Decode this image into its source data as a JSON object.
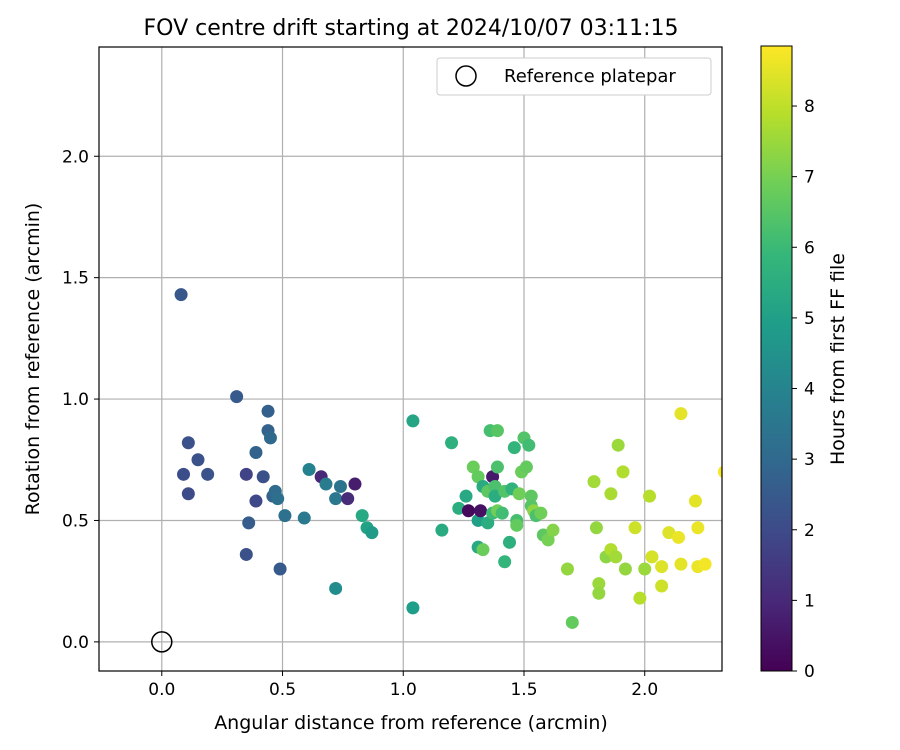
{
  "chart_data": {
    "type": "scatter",
    "title": "FOV centre drift starting at 2024/10/07 03:11:15",
    "xlabel": "Angular distance from reference (arcmin)",
    "ylabel": "Rotation from reference (arcmin)",
    "xlim": [
      -0.26,
      2.32
    ],
    "ylim": [
      -0.12,
      2.45
    ],
    "xticks": [
      0.0,
      0.5,
      1.0,
      1.5,
      2.0
    ],
    "xtick_labels": [
      "0.0",
      "0.5",
      "1.0",
      "1.5",
      "2.0"
    ],
    "yticks": [
      0.0,
      0.5,
      1.0,
      1.5,
      2.0
    ],
    "ytick_labels": [
      "0.0",
      "0.5",
      "1.0",
      "1.5",
      "2.0"
    ],
    "grid": true,
    "legend": {
      "position": "top-right",
      "entries": [
        {
          "label": "Reference platepar",
          "marker": "open-circle",
          "x": 0.0,
          "y": 0.0
        }
      ]
    },
    "colorbar": {
      "label": "Hours from first FF file",
      "range": [
        0,
        8.85
      ],
      "ticks": [
        0,
        1,
        2,
        3,
        4,
        5,
        6,
        7,
        8
      ],
      "tick_labels": [
        "0",
        "1",
        "2",
        "3",
        "4",
        "5",
        "6",
        "7",
        "8"
      ],
      "colormap": "viridis"
    },
    "points": [
      {
        "x": 0.08,
        "y": 1.43,
        "h": 2.4
      },
      {
        "x": 0.09,
        "y": 0.69,
        "h": 2.1
      },
      {
        "x": 0.11,
        "y": 0.82,
        "h": 2.2
      },
      {
        "x": 0.11,
        "y": 0.61,
        "h": 2.0
      },
      {
        "x": 0.15,
        "y": 0.75,
        "h": 2.2
      },
      {
        "x": 0.19,
        "y": 0.69,
        "h": 2.3
      },
      {
        "x": 0.31,
        "y": 1.01,
        "h": 2.5
      },
      {
        "x": 0.35,
        "y": 0.69,
        "h": 1.8
      },
      {
        "x": 0.35,
        "y": 0.36,
        "h": 2.2
      },
      {
        "x": 0.36,
        "y": 0.49,
        "h": 2.6
      },
      {
        "x": 0.39,
        "y": 0.58,
        "h": 1.9
      },
      {
        "x": 0.39,
        "y": 0.78,
        "h": 2.8
      },
      {
        "x": 0.42,
        "y": 0.68,
        "h": 2.2
      },
      {
        "x": 0.44,
        "y": 0.95,
        "h": 2.7
      },
      {
        "x": 0.44,
        "y": 0.87,
        "h": 2.8
      },
      {
        "x": 0.45,
        "y": 0.84,
        "h": 3.0
      },
      {
        "x": 0.46,
        "y": 0.6,
        "h": 2.8
      },
      {
        "x": 0.47,
        "y": 0.62,
        "h": 3.1
      },
      {
        "x": 0.48,
        "y": 0.59,
        "h": 3.2
      },
      {
        "x": 0.49,
        "y": 0.3,
        "h": 2.5
      },
      {
        "x": 0.51,
        "y": 0.52,
        "h": 3.3
      },
      {
        "x": 0.59,
        "y": 0.51,
        "h": 3.6
      },
      {
        "x": 0.61,
        "y": 0.71,
        "h": 3.9
      },
      {
        "x": 0.66,
        "y": 0.68,
        "h": 1.0
      },
      {
        "x": 0.68,
        "y": 0.65,
        "h": 3.7
      },
      {
        "x": 0.72,
        "y": 0.59,
        "h": 3.5
      },
      {
        "x": 0.72,
        "y": 0.22,
        "h": 4.3
      },
      {
        "x": 0.74,
        "y": 0.64,
        "h": 3.4
      },
      {
        "x": 0.77,
        "y": 0.59,
        "h": 1.1
      },
      {
        "x": 0.8,
        "y": 0.65,
        "h": 0.7
      },
      {
        "x": 0.83,
        "y": 0.52,
        "h": 5.3
      },
      {
        "x": 0.85,
        "y": 0.47,
        "h": 5.1
      },
      {
        "x": 0.87,
        "y": 0.45,
        "h": 4.8
      },
      {
        "x": 1.04,
        "y": 0.14,
        "h": 4.9
      },
      {
        "x": 1.04,
        "y": 0.91,
        "h": 5.2
      },
      {
        "x": 1.16,
        "y": 0.46,
        "h": 5.4
      },
      {
        "x": 1.2,
        "y": 0.82,
        "h": 5.6
      },
      {
        "x": 1.23,
        "y": 0.55,
        "h": 5.5
      },
      {
        "x": 1.26,
        "y": 0.6,
        "h": 5.3
      },
      {
        "x": 1.27,
        "y": 0.54,
        "h": 0.2
      },
      {
        "x": 1.29,
        "y": 0.72,
        "h": 6.8
      },
      {
        "x": 1.31,
        "y": 0.39,
        "h": 5.3
      },
      {
        "x": 1.31,
        "y": 0.5,
        "h": 5.0
      },
      {
        "x": 1.31,
        "y": 0.68,
        "h": 6.7
      },
      {
        "x": 1.32,
        "y": 0.54,
        "h": 0.4
      },
      {
        "x": 1.33,
        "y": 0.64,
        "h": 5.4
      },
      {
        "x": 1.33,
        "y": 0.38,
        "h": 6.8
      },
      {
        "x": 1.35,
        "y": 0.49,
        "h": 5.5
      },
      {
        "x": 1.35,
        "y": 0.62,
        "h": 6.6
      },
      {
        "x": 1.36,
        "y": 0.87,
        "h": 6.2
      },
      {
        "x": 1.37,
        "y": 0.68,
        "h": 0.6
      },
      {
        "x": 1.37,
        "y": 0.53,
        "h": 6.0
      },
      {
        "x": 1.38,
        "y": 0.64,
        "h": 6.3
      },
      {
        "x": 1.38,
        "y": 0.6,
        "h": 5.5
      },
      {
        "x": 1.39,
        "y": 0.72,
        "h": 6.3
      },
      {
        "x": 1.39,
        "y": 0.87,
        "h": 6.5
      },
      {
        "x": 1.39,
        "y": 0.54,
        "h": 6.9
      },
      {
        "x": 1.41,
        "y": 0.53,
        "h": 6.1
      },
      {
        "x": 1.42,
        "y": 0.62,
        "h": 6.4
      },
      {
        "x": 1.42,
        "y": 0.33,
        "h": 5.8
      },
      {
        "x": 1.44,
        "y": 0.41,
        "h": 5.6
      },
      {
        "x": 1.45,
        "y": 0.63,
        "h": 5.7
      },
      {
        "x": 1.46,
        "y": 0.8,
        "h": 5.8
      },
      {
        "x": 1.47,
        "y": 0.5,
        "h": 6.2
      },
      {
        "x": 1.47,
        "y": 0.48,
        "h": 6.7
      },
      {
        "x": 1.48,
        "y": 0.61,
        "h": 6.9
      },
      {
        "x": 1.49,
        "y": 0.7,
        "h": 6.8
      },
      {
        "x": 1.5,
        "y": 0.84,
        "h": 6.4
      },
      {
        "x": 1.51,
        "y": 0.72,
        "h": 6.7
      },
      {
        "x": 1.52,
        "y": 0.81,
        "h": 6.1
      },
      {
        "x": 1.53,
        "y": 0.6,
        "h": 6.6
      },
      {
        "x": 1.53,
        "y": 0.56,
        "h": 6.5
      },
      {
        "x": 1.54,
        "y": 0.54,
        "h": 7.3
      },
      {
        "x": 1.55,
        "y": 0.52,
        "h": 6.3
      },
      {
        "x": 1.57,
        "y": 0.53,
        "h": 6.9
      },
      {
        "x": 1.58,
        "y": 0.44,
        "h": 6.6
      },
      {
        "x": 1.6,
        "y": 0.42,
        "h": 7.0
      },
      {
        "x": 1.62,
        "y": 0.46,
        "h": 7.2
      },
      {
        "x": 1.68,
        "y": 0.3,
        "h": 7.4
      },
      {
        "x": 1.7,
        "y": 0.08,
        "h": 6.7
      },
      {
        "x": 1.79,
        "y": 0.66,
        "h": 7.6
      },
      {
        "x": 1.8,
        "y": 0.47,
        "h": 7.4
      },
      {
        "x": 1.81,
        "y": 0.24,
        "h": 7.5
      },
      {
        "x": 1.81,
        "y": 0.2,
        "h": 7.4
      },
      {
        "x": 1.84,
        "y": 0.35,
        "h": 7.3
      },
      {
        "x": 1.86,
        "y": 0.38,
        "h": 7.8
      },
      {
        "x": 1.86,
        "y": 0.61,
        "h": 7.7
      },
      {
        "x": 1.88,
        "y": 0.35,
        "h": 7.6
      },
      {
        "x": 1.89,
        "y": 0.81,
        "h": 7.5
      },
      {
        "x": 1.91,
        "y": 0.7,
        "h": 7.8
      },
      {
        "x": 1.92,
        "y": 0.3,
        "h": 7.4
      },
      {
        "x": 1.96,
        "y": 0.47,
        "h": 8.2
      },
      {
        "x": 1.98,
        "y": 0.18,
        "h": 7.9
      },
      {
        "x": 2.0,
        "y": 0.3,
        "h": 7.5
      },
      {
        "x": 2.02,
        "y": 0.6,
        "h": 7.9
      },
      {
        "x": 2.03,
        "y": 0.35,
        "h": 8.3
      },
      {
        "x": 2.07,
        "y": 0.31,
        "h": 8.4
      },
      {
        "x": 2.07,
        "y": 0.23,
        "h": 8.2
      },
      {
        "x": 2.1,
        "y": 0.45,
        "h": 8.4
      },
      {
        "x": 2.14,
        "y": 0.43,
        "h": 8.6
      },
      {
        "x": 2.15,
        "y": 0.94,
        "h": 8.5
      },
      {
        "x": 2.15,
        "y": 0.32,
        "h": 8.5
      },
      {
        "x": 2.21,
        "y": 0.58,
        "h": 8.5
      },
      {
        "x": 2.22,
        "y": 0.47,
        "h": 8.6
      },
      {
        "x": 2.22,
        "y": 0.31,
        "h": 8.6
      },
      {
        "x": 2.25,
        "y": 0.32,
        "h": 8.7
      },
      {
        "x": 2.33,
        "y": 0.7,
        "h": 8.8
      }
    ]
  }
}
